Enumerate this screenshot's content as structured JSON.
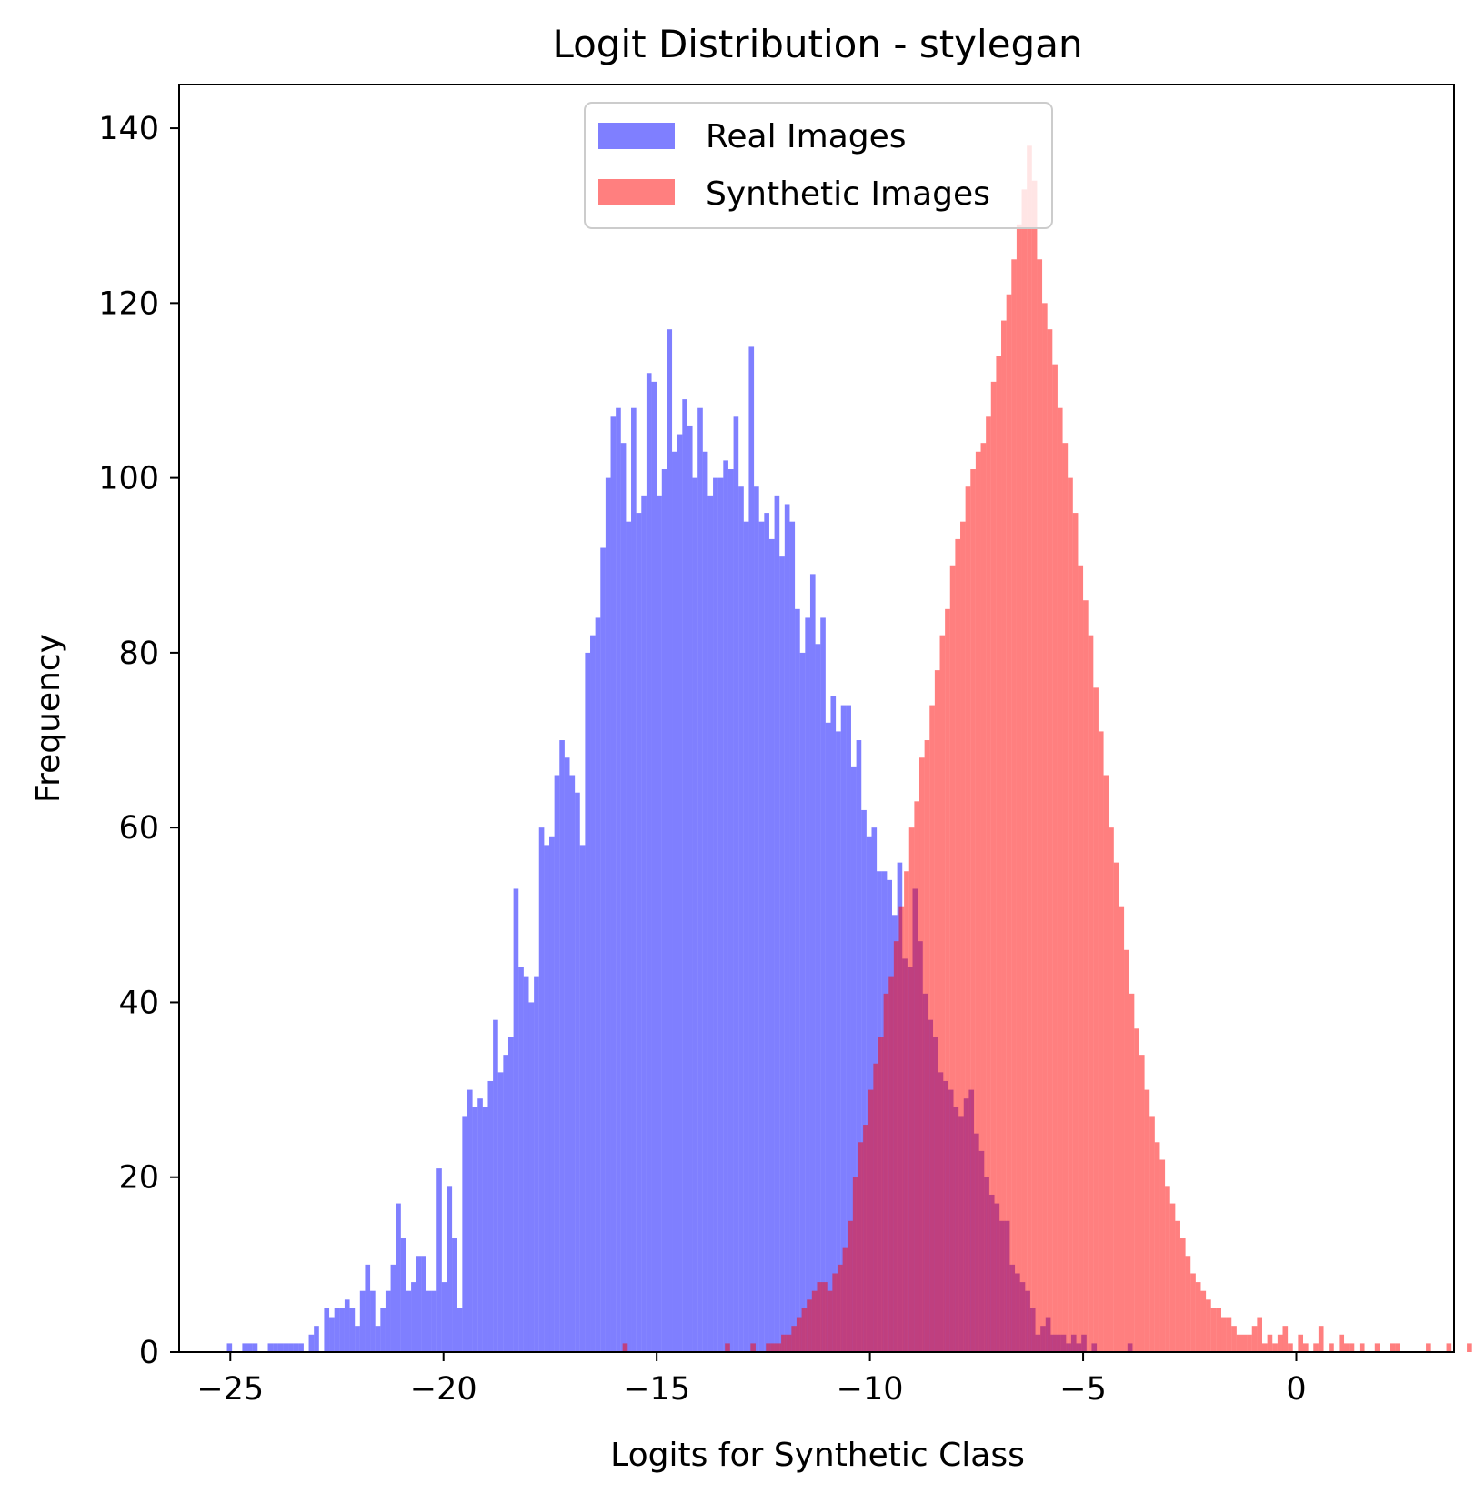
{
  "chart_data": {
    "type": "histogram",
    "title": "Logit Distribution - stylegan",
    "xlabel": "Logits for Synthetic Class",
    "ylabel": "Frequency",
    "xlim": [
      -26.2,
      3.7
    ],
    "ylim": [
      0,
      145
    ],
    "xticks": [
      -25,
      -20,
      -15,
      -10,
      -5,
      0
    ],
    "xtick_labels": [
      "−25",
      "−20",
      "−15",
      "−10",
      "−5",
      "0"
    ],
    "yticks": [
      0,
      20,
      40,
      60,
      80,
      100,
      120,
      140
    ],
    "ytick_labels": [
      "0",
      "20",
      "40",
      "60",
      "80",
      "100",
      "120",
      "140"
    ],
    "grid": false,
    "legend": {
      "position": "upper center",
      "entries": [
        "Real Images",
        "Synthetic Images"
      ]
    },
    "series": [
      {
        "name": "Real Images",
        "color": "#0000ff",
        "alpha": 0.5,
        "x_start": -25.2,
        "bin_width": 0.12,
        "values": [
          0,
          1,
          0,
          0,
          1,
          1,
          1,
          0,
          0,
          1,
          1,
          1,
          1,
          1,
          1,
          1,
          0,
          2,
          3,
          0,
          5,
          4,
          5,
          5,
          6,
          5,
          3,
          7,
          10,
          7,
          3,
          5,
          7,
          10,
          17,
          13,
          7,
          8,
          11,
          11,
          7,
          7,
          21,
          8,
          19,
          13,
          5,
          27,
          30,
          28,
          29,
          28,
          31,
          38,
          32,
          34,
          36,
          53,
          44,
          43,
          40,
          43,
          60,
          58,
          59,
          66,
          70,
          68,
          66,
          64,
          58,
          80,
          82,
          84,
          92,
          100,
          107,
          108,
          104,
          95,
          108,
          96,
          98,
          112,
          111,
          98,
          101,
          117,
          103,
          105,
          109,
          106,
          100,
          108,
          103,
          98,
          100,
          100,
          102,
          101,
          107,
          99,
          95,
          115,
          99,
          95,
          96,
          93,
          98,
          91,
          97,
          95,
          85,
          80,
          84,
          89,
          81,
          84,
          72,
          75,
          71,
          74,
          74,
          67,
          70,
          62,
          59,
          60,
          55,
          55,
          54,
          50,
          56,
          45,
          44,
          53,
          47,
          41,
          38,
          36,
          32,
          31,
          30,
          28,
          27,
          29,
          30,
          25,
          23,
          20,
          18,
          17,
          15,
          15,
          10,
          9,
          8,
          7,
          5,
          2,
          3,
          4,
          2,
          2,
          2,
          1,
          2,
          1,
          2,
          0,
          1,
          0,
          0,
          0,
          0,
          0,
          0,
          1
        ]
      },
      {
        "name": "Synthetic Images",
        "color": "#ff0000",
        "alpha": 0.5,
        "x_start": -15.8,
        "bin_width": 0.12,
        "values": [
          1,
          0,
          0,
          0,
          0,
          0,
          0,
          0,
          0,
          0,
          0,
          0,
          0,
          0,
          0,
          0,
          0,
          0,
          0,
          0,
          1,
          0,
          0,
          0,
          0,
          1,
          0,
          0,
          1,
          1,
          1,
          2,
          2,
          3,
          4,
          5,
          6,
          7,
          8,
          8,
          7,
          9,
          10,
          12,
          15,
          20,
          24,
          26,
          30,
          33,
          36,
          41,
          43,
          47,
          51,
          55,
          60,
          63,
          68,
          70,
          74,
          78,
          82,
          85,
          90,
          93,
          95,
          99,
          101,
          103,
          104,
          107,
          111,
          114,
          118,
          121,
          125,
          129,
          133,
          138,
          134,
          125,
          120,
          117,
          113,
          108,
          104,
          100,
          96,
          90,
          86,
          82,
          76,
          71,
          66,
          60,
          56,
          51,
          46,
          41,
          37,
          34,
          30,
          27,
          24,
          22,
          19,
          17,
          15,
          13,
          11,
          9,
          8,
          7,
          6,
          5,
          5,
          4,
          4,
          3,
          2,
          2,
          2,
          3,
          4,
          1,
          2,
          1,
          2,
          3,
          1,
          0,
          2,
          1,
          0,
          1,
          3,
          0,
          1,
          0,
          2,
          1,
          1,
          0,
          1,
          0,
          0,
          1,
          0,
          0,
          1,
          1,
          0,
          0,
          0,
          0,
          0,
          1,
          0,
          0,
          0,
          1,
          0,
          0,
          0,
          1,
          0,
          1
        ]
      }
    ]
  }
}
